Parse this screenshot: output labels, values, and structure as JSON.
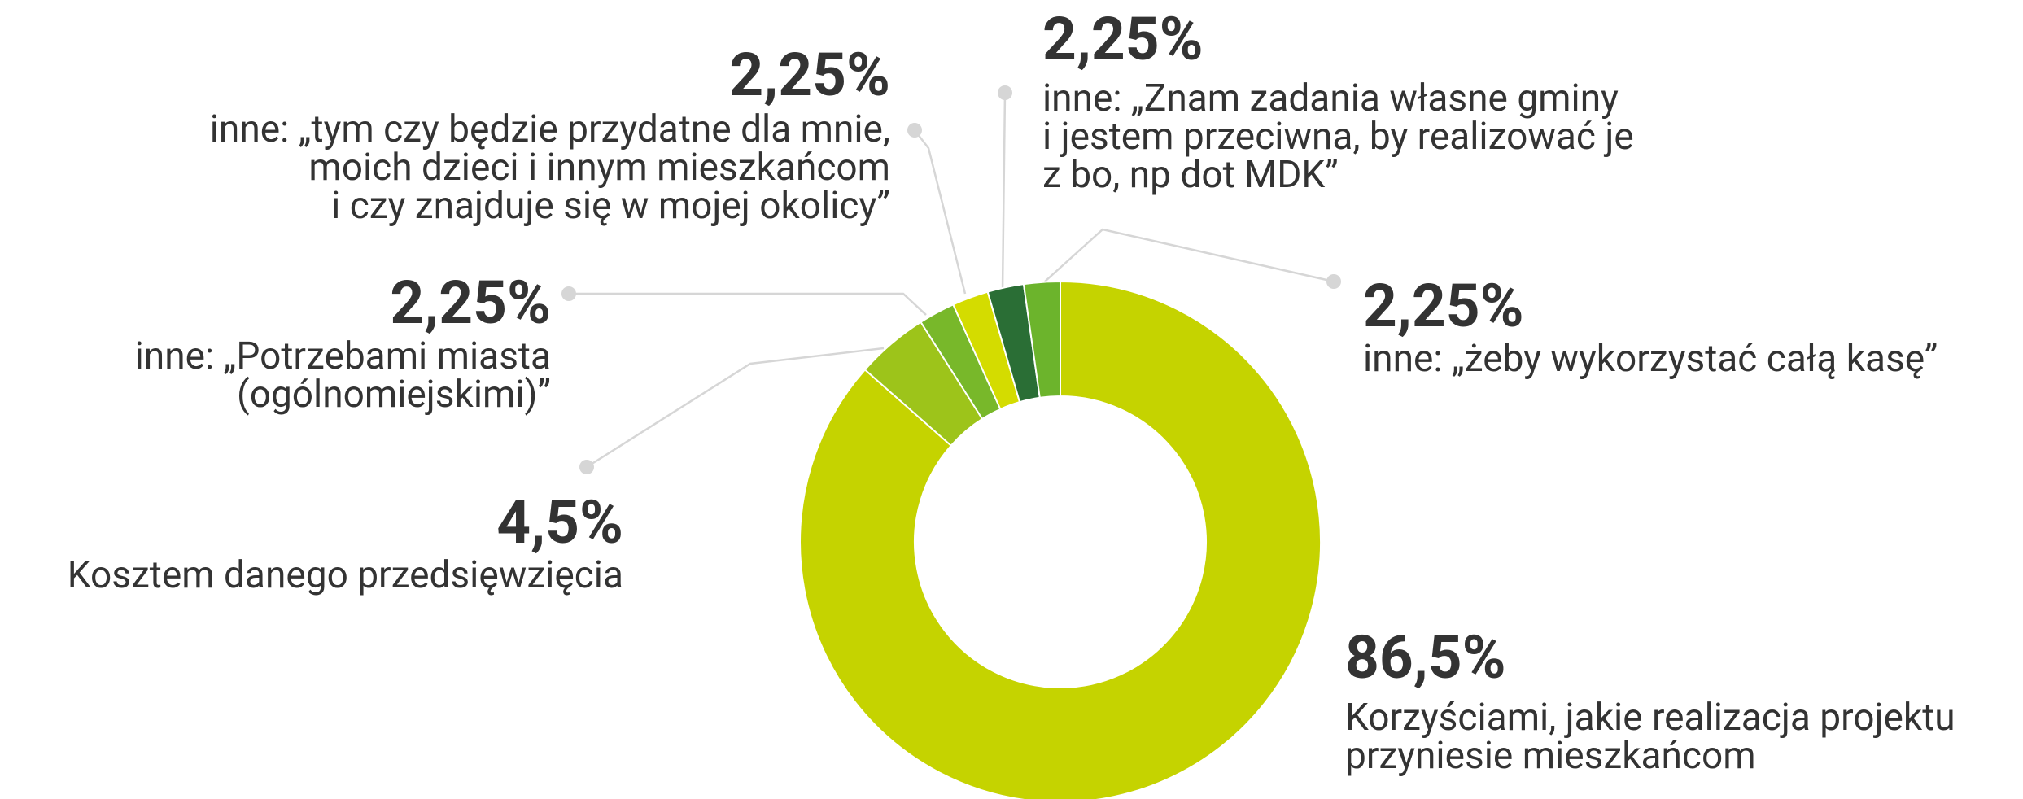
{
  "chart_data": {
    "type": "donut",
    "categories": [
      [
        "Korzyściami, jakie realizacja projektu",
        "przyniesie mieszkańcom"
      ],
      [
        "Kosztem danego przedsięwzięcia"
      ],
      [
        "inne: „Potrzebami miasta",
        "(ogólnomiejskimi)”"
      ],
      [
        "inne: „tym czy będzie przydatne dla mnie,",
        "moich dzieci i innym mieszkańcom",
        "i czy znajduje się w mojej okolicy”"
      ],
      [
        "inne: „Znam zadania własne gminy",
        "i jestem przeciwna, by realizować je",
        "z bo, np dot MDK”"
      ],
      [
        "inne: „żeby wykorzystać całą kasę”"
      ]
    ],
    "values": [
      86.5,
      4.5,
      2.25,
      2.25,
      2.25,
      2.25
    ],
    "value_labels": [
      "86,5%",
      "4,5%",
      "2,25%",
      "2,25%",
      "2,25%",
      "2,25%"
    ],
    "colors": [
      "#c5d300",
      "#9dc41a",
      "#78b82a",
      "#d4dc00",
      "#2a6e35",
      "#6cb42c"
    ]
  }
}
